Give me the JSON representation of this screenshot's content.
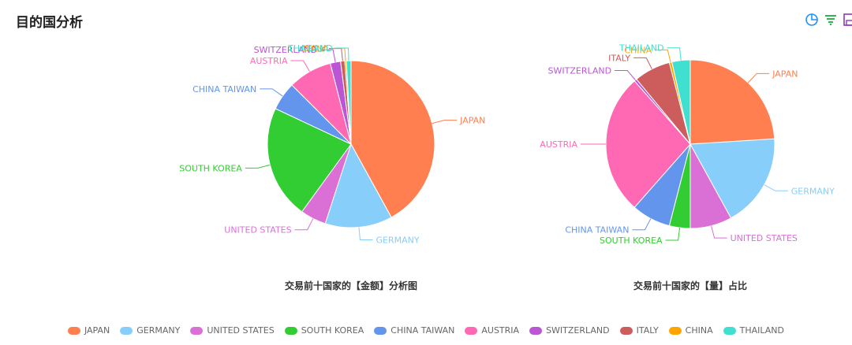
{
  "header": {
    "title": "目的国分析"
  },
  "toolbox": [
    {
      "name": "pie-chart-icon",
      "color": "#1e90ff"
    },
    {
      "name": "filter-icon",
      "color": "#2db84d"
    },
    {
      "name": "save-icon",
      "color": "#8a3ab9"
    }
  ],
  "legend": [
    {
      "label": "JAPAN",
      "color": "#ff7f50"
    },
    {
      "label": "GERMANY",
      "color": "#87cefa"
    },
    {
      "label": "UNITED STATES",
      "color": "#da70d6"
    },
    {
      "label": "SOUTH KOREA",
      "color": "#32cd32"
    },
    {
      "label": "CHINA TAIWAN",
      "color": "#6495ed"
    },
    {
      "label": "AUSTRIA",
      "color": "#ff69b4"
    },
    {
      "label": "SWITZERLAND",
      "color": "#ba55d3"
    },
    {
      "label": "ITALY",
      "color": "#cd5c5c"
    },
    {
      "label": "CHINA",
      "color": "#ffa500"
    },
    {
      "label": "THAILAND",
      "color": "#40e0d0"
    }
  ],
  "chart_data": [
    {
      "type": "pie",
      "title": "交易前十国家的【金额】分析图",
      "categories": [
        "JAPAN",
        "GERMANY",
        "UNITED STATES",
        "SOUTH KOREA",
        "CHINA TAIWAN",
        "AUSTRIA",
        "SWITZERLAND",
        "ITALY",
        "CHINA",
        "THAILAND"
      ],
      "values": [
        42.0,
        13.0,
        5.0,
        22.0,
        5.5,
        8.5,
        2.0,
        0.8,
        0.3,
        0.9
      ]
    },
    {
      "type": "pie",
      "title": "交易前十国家的【量】占比",
      "categories": [
        "JAPAN",
        "GERMANY",
        "UNITED STATES",
        "SOUTH KOREA",
        "CHINA TAIWAN",
        "AUSTRIA",
        "SWITZERLAND",
        "ITALY",
        "CHINA",
        "THAILAND"
      ],
      "values": [
        24.0,
        18.0,
        8.0,
        4.0,
        7.5,
        27.0,
        0.5,
        7.0,
        0.5,
        3.5
      ]
    }
  ]
}
